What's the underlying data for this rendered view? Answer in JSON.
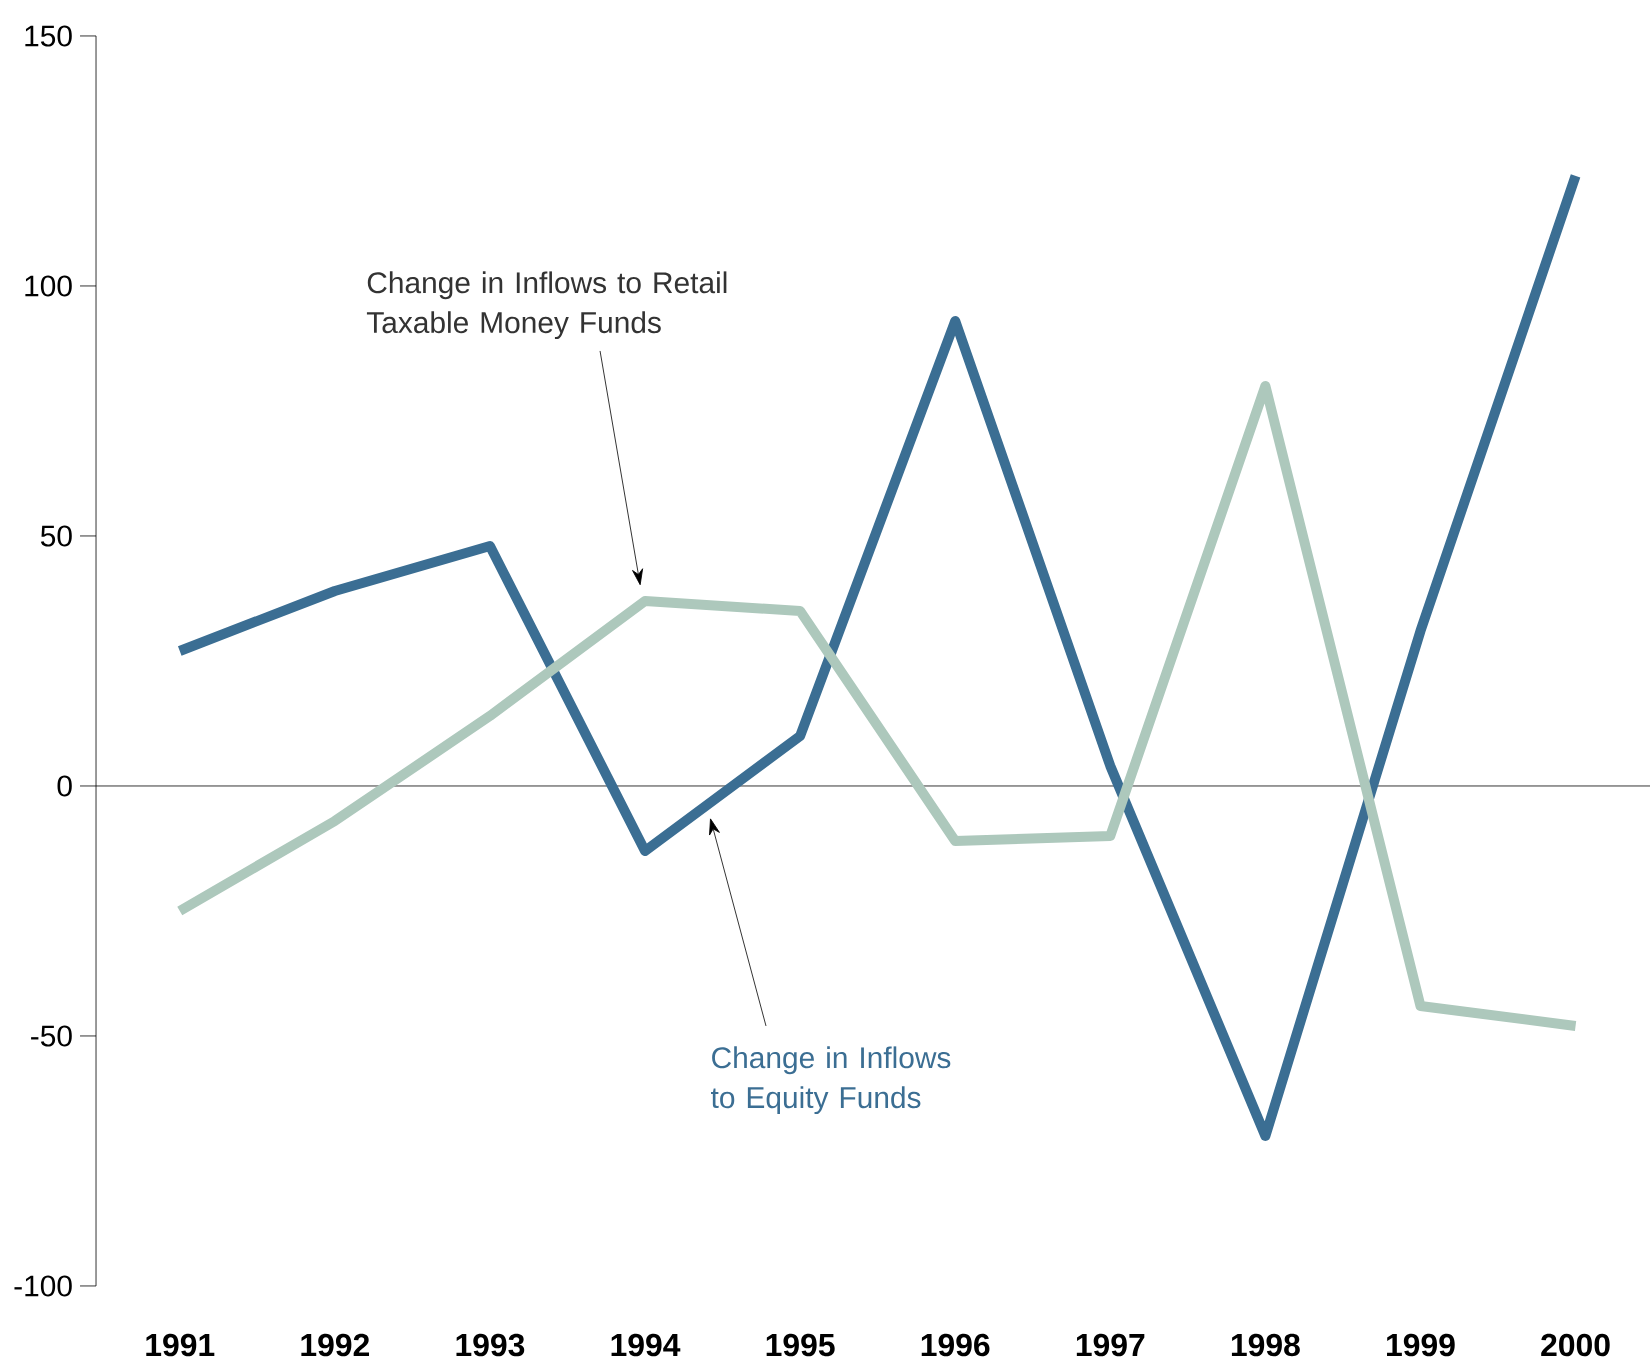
{
  "chart_data": {
    "type": "line",
    "categories": [
      "1991",
      "1992",
      "1993",
      "1994",
      "1995",
      "1996",
      "1997",
      "1998",
      "1999",
      "2000"
    ],
    "series": [
      {
        "name": "Change in Inflows to Equity Funds",
        "color": "#3b6e93",
        "values": [
          27,
          39,
          48,
          -13,
          10,
          93,
          4,
          -70,
          31,
          122
        ]
      },
      {
        "name": "Change in Inflows to Retail Taxable Money Funds",
        "color": "#adc8bc",
        "values": [
          -25,
          -7,
          14,
          37,
          35,
          -11,
          -10,
          80,
          -44,
          -48
        ]
      }
    ],
    "ylim": [
      -100,
      150
    ],
    "yticks": [
      -100,
      -50,
      0,
      50,
      100,
      150
    ],
    "ref_lines": [
      {
        "axis": "y",
        "value": 0
      }
    ],
    "grid": false,
    "legend": false,
    "marker": "none",
    "line_style": "solid"
  }
}
